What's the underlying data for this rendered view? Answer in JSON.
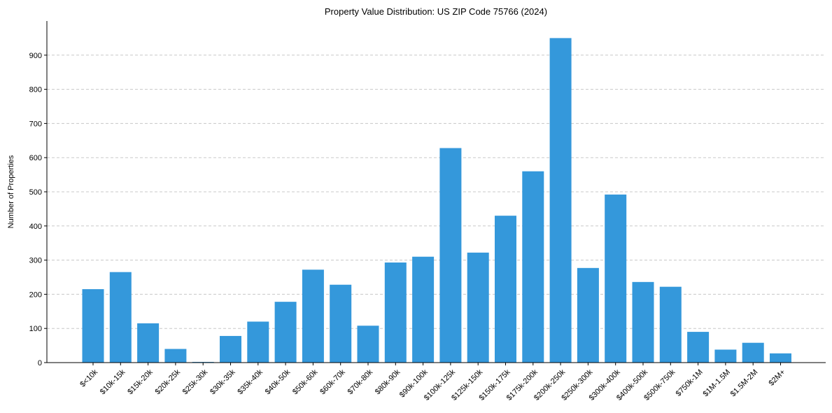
{
  "chart_data": {
    "type": "bar",
    "title": "Property Value Distribution: US ZIP Code 75766 (2024)",
    "xlabel": "",
    "ylabel": "Number of Properties",
    "categories": [
      "$<10k",
      "$10k-15k",
      "$15k-20k",
      "$20k-25k",
      "$25k-30k",
      "$30k-35k",
      "$35k-40k",
      "$40k-50k",
      "$50k-60k",
      "$60k-70k",
      "$70k-80k",
      "$80k-90k",
      "$90k-100k",
      "$100k-125k",
      "$125k-150k",
      "$150k-175k",
      "$175k-200k",
      "$200k-250k",
      "$250k-300k",
      "$300k-400k",
      "$400k-500k",
      "$500k-750k",
      "$750k-1M",
      "$1M-1.5M",
      "$1.5M-2M",
      "$2M+"
    ],
    "values": [
      215,
      265,
      115,
      40,
      2,
      78,
      120,
      178,
      272,
      228,
      108,
      293,
      310,
      628,
      322,
      430,
      560,
      950,
      277,
      492,
      236,
      222,
      90,
      38,
      58,
      27
    ],
    "yticks": [
      0,
      100,
      200,
      300,
      400,
      500,
      600,
      700,
      800,
      900
    ],
    "ylim": [
      0,
      1000
    ],
    "grid": true,
    "bar_color": "#3498db"
  }
}
